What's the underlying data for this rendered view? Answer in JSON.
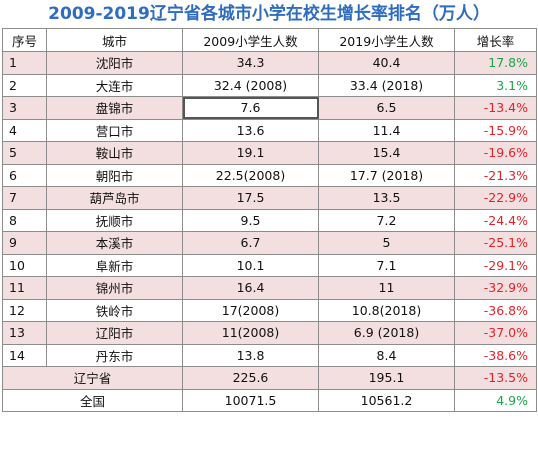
{
  "title": "2009-2019辽宁省各城市小学在校生增长率排名（万人）",
  "headers": {
    "rank": "序号",
    "city": "城市",
    "y2009": "2009小学生人数",
    "y2019": "2019小学生人数",
    "rate": "增长率"
  },
  "rows": [
    {
      "rank": "1",
      "city": "沈阳市",
      "y2009": "34.3",
      "y2019": "40.4",
      "rate": "17.8%"
    },
    {
      "rank": "2",
      "city": "大连市",
      "y2009": "32.4 (2008)",
      "y2019": "33.4 (2018)",
      "rate": "3.1%"
    },
    {
      "rank": "3",
      "city": "盘锦市",
      "y2009": "7.6",
      "y2019": "6.5",
      "rate": "-13.4%"
    },
    {
      "rank": "4",
      "city": "营口市",
      "y2009": "13.6",
      "y2019": "11.4",
      "rate": "-15.9%"
    },
    {
      "rank": "5",
      "city": "鞍山市",
      "y2009": "19.1",
      "y2019": "15.4",
      "rate": "-19.6%"
    },
    {
      "rank": "6",
      "city": "朝阳市",
      "y2009": "22.5(2008)",
      "y2019": "17.7 (2018)",
      "rate": "-21.3%"
    },
    {
      "rank": "7",
      "city": "葫芦岛市",
      "y2009": "17.5",
      "y2019": "13.5",
      "rate": "-22.9%"
    },
    {
      "rank": "8",
      "city": "抚顺市",
      "y2009": "9.5",
      "y2019": "7.2",
      "rate": "-24.4%"
    },
    {
      "rank": "9",
      "city": "本溪市",
      "y2009": "6.7",
      "y2019": "5",
      "rate": "-25.1%"
    },
    {
      "rank": "10",
      "city": "阜新市",
      "y2009": "10.1",
      "y2019": "7.1",
      "rate": "-29.1%"
    },
    {
      "rank": "11",
      "city": "锦州市",
      "y2009": "16.4",
      "y2019": "11",
      "rate": "-32.9%"
    },
    {
      "rank": "12",
      "city": "铁岭市",
      "y2009": "17(2008)",
      "y2019": "10.8(2018)",
      "rate": "-36.8%"
    },
    {
      "rank": "13",
      "city": "辽阳市",
      "y2009": "11(2008)",
      "y2019": "6.9 (2018)",
      "rate": "-37.0%"
    },
    {
      "rank": "14",
      "city": "丹东市",
      "y2009": "13.8",
      "y2019": "8.4",
      "rate": "-38.6%"
    }
  ],
  "province": {
    "label": "辽宁省",
    "y2009": "225.6",
    "y2019": "195.1",
    "rate": "-13.5%"
  },
  "national": {
    "label": "全国",
    "y2009": "10071.5",
    "y2019": "10561.2",
    "rate": "4.9%"
  },
  "colors": {
    "title": "#2e6cc0",
    "row_highlight": "#f4dfe0",
    "negative": "#e0242a",
    "positive": "#1aa64a"
  }
}
